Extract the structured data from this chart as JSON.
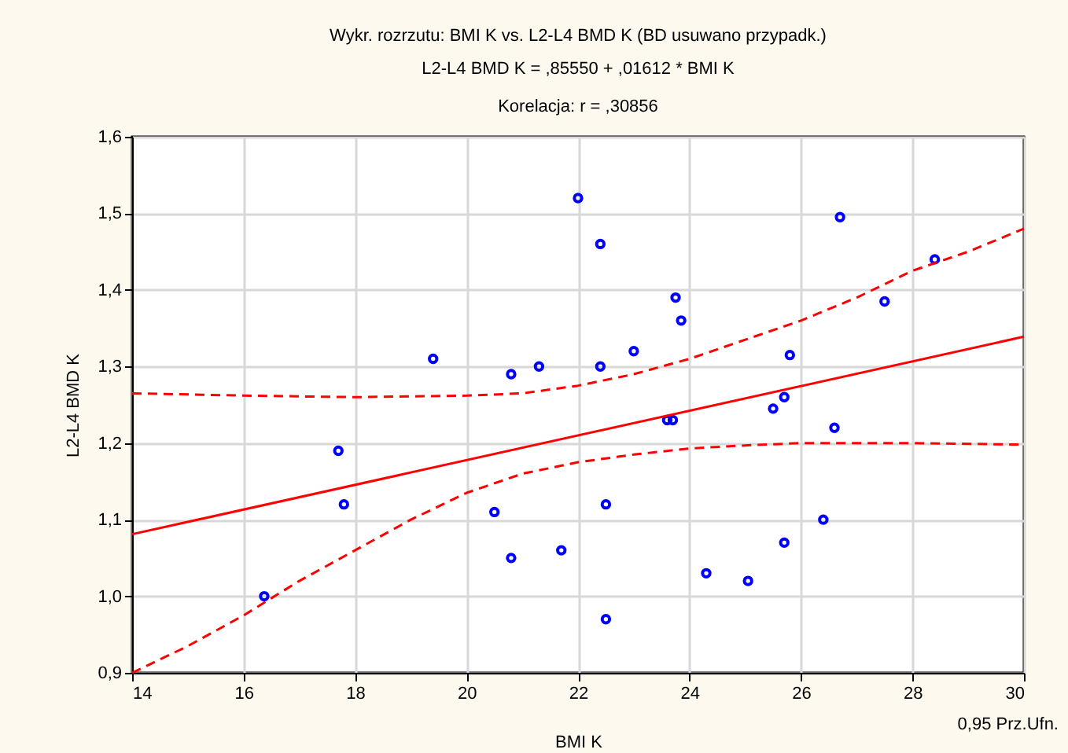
{
  "chart_data": {
    "type": "scatter",
    "title": "Wykr. rozrzutu: BMI  K vs. L2-L4 BMD  K (BD usuwano przypadk.)",
    "subtitle": "L2-L4 BMD  K = ,85550 + ,01612 * BMI  K\nKorelacja: r =    ,30856",
    "xlabel": "BMI  K",
    "ylabel": "L2-L4 BMD  K",
    "x": [
      16.37,
      17.7,
      17.8,
      19.4,
      20.5,
      20.8,
      21.3,
      20.8,
      21.7,
      22.0,
      22.4,
      22.4,
      22.5,
      22.5,
      23.0,
      23.6,
      23.7,
      23.75,
      23.85,
      24.3,
      25.05,
      25.5,
      25.7,
      25.8,
      25.7,
      26.4,
      26.6,
      26.7,
      27.5,
      28.4
    ],
    "series": [
      {
        "color": "#0000ff",
        "marker": "circle",
        "values": [
          1.0,
          1.19,
          1.12,
          1.31,
          1.11,
          1.29,
          1.3,
          1.05,
          1.06,
          1.52,
          1.46,
          1.3,
          1.12,
          0.97,
          1.32,
          1.23,
          1.23,
          1.39,
          1.36,
          1.03,
          1.02,
          1.245,
          1.26,
          1.315,
          1.07,
          1.1,
          1.22,
          1.495,
          1.385,
          1.44
        ]
      },
      {
        "type": "line",
        "color": "#ff0000",
        "line_style": "solid",
        "x": [
          14,
          30
        ],
        "values": [
          1.081,
          1.339
        ]
      },
      {
        "type": "line",
        "color": "#ff0000",
        "line_style": "dashed",
        "x": [
          14,
          16,
          18,
          20,
          21,
          22,
          23,
          24,
          25,
          26,
          27,
          28,
          29,
          30
        ],
        "values": [
          1.265,
          1.262,
          1.26,
          1.262,
          1.265,
          1.275,
          1.29,
          1.31,
          1.335,
          1.36,
          1.39,
          1.425,
          1.45,
          1.48
        ]
      },
      {
        "type": "line",
        "color": "#ff0000",
        "line_style": "dashed",
        "x": [
          14,
          15,
          16,
          17,
          18,
          19,
          20,
          21,
          22,
          23,
          24,
          25,
          26,
          28,
          30
        ],
        "values": [
          0.9,
          0.935,
          0.975,
          1.02,
          1.06,
          1.1,
          1.135,
          1.16,
          1.175,
          1.185,
          1.193,
          1.197,
          1.2,
          1.2,
          1.198
        ]
      }
    ],
    "xlim": [
      14,
      30
    ],
    "xticks": [
      14,
      16,
      18,
      20,
      22,
      24,
      26,
      28,
      30
    ],
    "ylim": [
      0.9,
      1.6
    ],
    "yticks": [
      {
        "value": 0.9,
        "label": "0,9"
      },
      {
        "value": 1.0,
        "label": "1,0"
      },
      {
        "value": 1.1,
        "label": "1,1"
      },
      {
        "value": 1.2,
        "label": "1,2"
      },
      {
        "value": 1.3,
        "label": "1,3"
      },
      {
        "value": 1.4,
        "label": "1,4"
      },
      {
        "value": 1.5,
        "label": "1,5"
      },
      {
        "value": 1.6,
        "label": "1,6"
      }
    ],
    "grid": true,
    "annotations": [
      "0,95 Prz.Ufn."
    ]
  }
}
